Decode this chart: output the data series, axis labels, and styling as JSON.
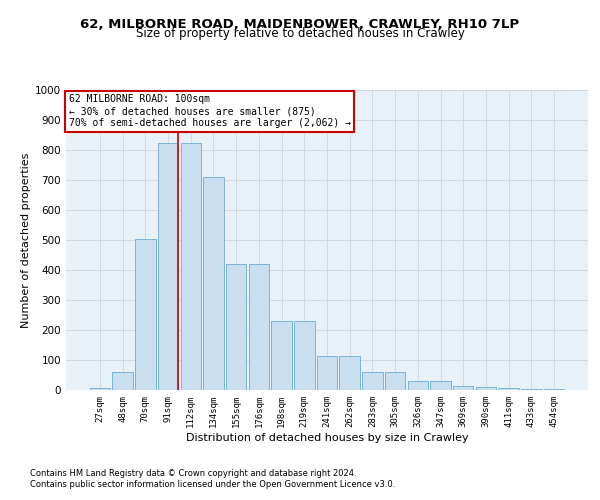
{
  "title": "62, MILBORNE ROAD, MAIDENBOWER, CRAWLEY, RH10 7LP",
  "subtitle": "Size of property relative to detached houses in Crawley",
  "xlabel": "Distribution of detached houses by size in Crawley",
  "ylabel": "Number of detached properties",
  "bin_labels": [
    "27sqm",
    "48sqm",
    "70sqm",
    "91sqm",
    "112sqm",
    "134sqm",
    "155sqm",
    "176sqm",
    "198sqm",
    "219sqm",
    "241sqm",
    "262sqm",
    "283sqm",
    "305sqm",
    "326sqm",
    "347sqm",
    "369sqm",
    "390sqm",
    "411sqm",
    "433sqm",
    "454sqm"
  ],
  "bar_heights": [
    8,
    60,
    505,
    825,
    825,
    710,
    420,
    420,
    230,
    230,
    115,
    115,
    60,
    60,
    30,
    30,
    15,
    10,
    8,
    5,
    3
  ],
  "bar_color": "#c9dff0",
  "bar_edge_color": "#7ab4d8",
  "grid_color": "#d0d8e0",
  "bg_color": "#e8f0f8",
  "red_line_x": 3.42,
  "annotation_text": "62 MILBORNE ROAD: 100sqm\n← 30% of detached houses are smaller (875)\n70% of semi-detached houses are larger (2,062) →",
  "annotation_box_color": "#ffffff",
  "annotation_box_edge": "#cc0000",
  "ylim": [
    0,
    1000
  ],
  "yticks": [
    0,
    100,
    200,
    300,
    400,
    500,
    600,
    700,
    800,
    900,
    1000
  ],
  "footer1": "Contains HM Land Registry data © Crown copyright and database right 2024.",
  "footer2": "Contains public sector information licensed under the Open Government Licence v3.0.",
  "title_fontsize": 9.5,
  "subtitle_fontsize": 8.5,
  "ylabel_fontsize": 8,
  "xlabel_fontsize": 8,
  "ytick_fontsize": 7.5,
  "xtick_fontsize": 6.5,
  "annot_fontsize": 7,
  "footer_fontsize": 6
}
